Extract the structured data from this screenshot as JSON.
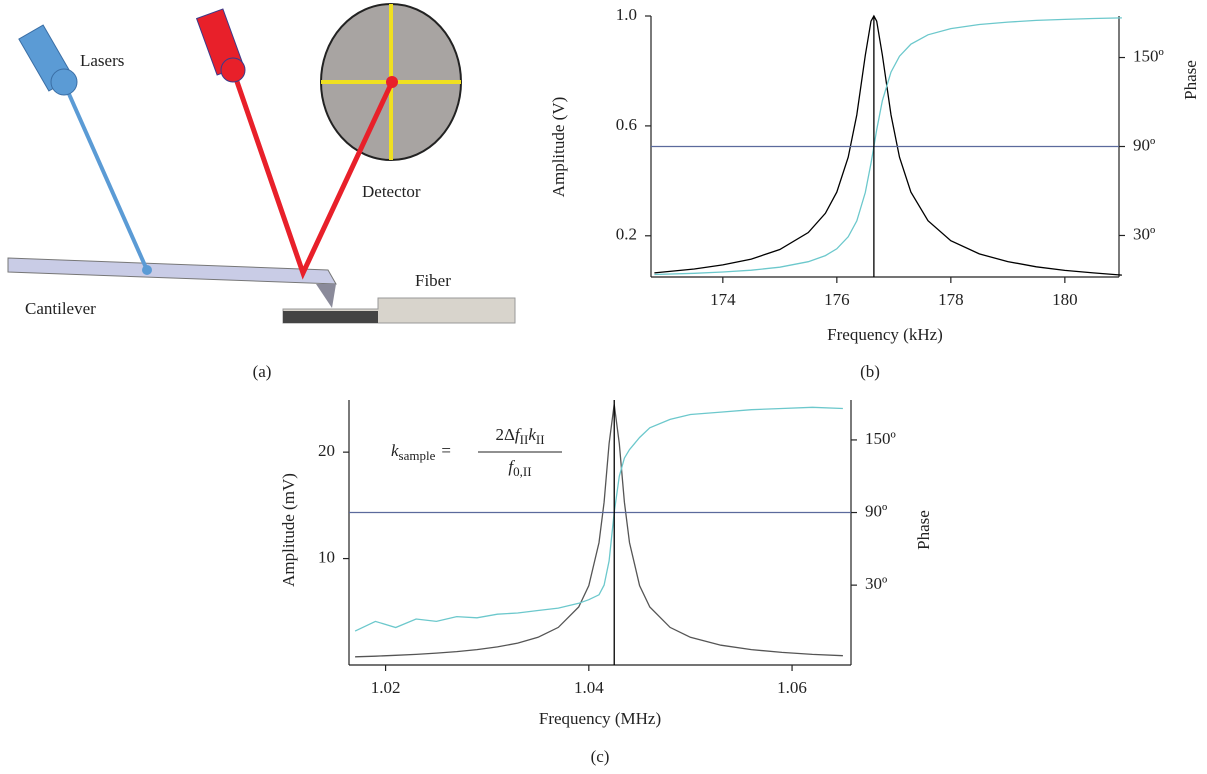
{
  "diagram": {
    "lasers": "Lasers",
    "detector": "Detector",
    "cantilever": "Cantilever",
    "fiber": "Fiber",
    "caption": "(a)"
  },
  "chart_data": [
    {
      "type": "line",
      "caption": "(b)",
      "xlabel": "Frequency (kHz)",
      "ylabel": "Amplitude (V)",
      "y2label": "Phase",
      "xlim": [
        172.74,
        180.95
      ],
      "xticks": [
        174,
        176,
        178,
        180
      ],
      "ylim": [
        0.05,
        1.0
      ],
      "yticks": [
        0.2,
        0.6,
        {
          "value": 1.0,
          "label": "1.0"
        }
      ],
      "y2lim": [
        2,
        178
      ],
      "y2ticks": [
        {
          "value": 30,
          "label": "30º"
        },
        {
          "value": 90,
          "label": "90º"
        },
        {
          "value": 150,
          "label": "150º"
        }
      ],
      "x": [
        172.8,
        173.5,
        174,
        174.5,
        175,
        175.5,
        175.8,
        176,
        176.2,
        176.35,
        176.5,
        176.6,
        176.65,
        176.7,
        176.8,
        176.95,
        177.1,
        177.3,
        177.6,
        178,
        178.5,
        179,
        179.5,
        180,
        180.5,
        181
      ],
      "series": [
        {
          "color": "#000000",
          "values": [
            0.065,
            0.079,
            0.094,
            0.115,
            0.15,
            0.212,
            0.282,
            0.359,
            0.486,
            0.64,
            0.857,
            0.981,
            1.0,
            0.981,
            0.857,
            0.64,
            0.486,
            0.359,
            0.255,
            0.182,
            0.134,
            0.106,
            0.087,
            0.074,
            0.065,
            0.057
          ]
        },
        {
          "color": "#6cc8cc",
          "axis": "y2",
          "values": [
            3.7,
            4.5,
            5.4,
            6.6,
            8.6,
            12.3,
            16.4,
            21.0,
            29.1,
            39.8,
            59.0,
            78.7,
            90,
            101.3,
            121.0,
            140.2,
            150.9,
            159.0,
            165.3,
            169.5,
            172.3,
            173.9,
            175.0,
            175.7,
            176.3,
            176.7
          ]
        }
      ],
      "reference_lines": [
        {
          "axis": "y2",
          "value": 90,
          "color": "#5b6a9c"
        },
        {
          "axis": "x",
          "value": 176.65,
          "color": "#000000"
        }
      ]
    },
    {
      "type": "line",
      "caption": "(c)",
      "xlabel": "Frequency (MHz)",
      "ylabel": "Amplitude (mV)",
      "y2label": "Phase",
      "annotation": {
        "k": "k",
        "k_sub": "sample",
        "equals": "=",
        "num_a": "2Δ",
        "num_f": "f",
        "num_f_sub": "II",
        "num_k": "k",
        "num_k_sub": "II",
        "den_f": "f",
        "den_f_sub": "0,II"
      },
      "xlim": [
        1.0164,
        1.0658
      ],
      "xticks": [
        1.02,
        1.04,
        1.06
      ],
      "ylim": [
        0,
        24.9
      ],
      "yticks": [
        10,
        20
      ],
      "y2lim": [
        -36,
        183
      ],
      "y2ticks": [
        {
          "value": 30,
          "label": "30º"
        },
        {
          "value": 90,
          "label": "90º"
        },
        {
          "value": 150,
          "label": "150º"
        }
      ],
      "x": [
        1.017,
        1.019,
        1.021,
        1.023,
        1.025,
        1.027,
        1.029,
        1.031,
        1.033,
        1.035,
        1.037,
        1.039,
        1.04,
        1.041,
        1.0415,
        1.042,
        1.0425,
        1.043,
        1.0435,
        1.044,
        1.045,
        1.046,
        1.048,
        1.05,
        1.053,
        1.056,
        1.059,
        1.062,
        1.065
      ],
      "series": [
        {
          "color": "#555555",
          "values": [
            0.77,
            0.83,
            0.91,
            1.0,
            1.12,
            1.26,
            1.45,
            1.7,
            2.06,
            2.6,
            3.53,
            5.45,
            7.46,
            11.5,
            15.3,
            20.8,
            24.5,
            20.8,
            15.3,
            11.5,
            7.46,
            5.45,
            3.53,
            2.6,
            1.86,
            1.45,
            1.18,
            1.0,
            0.87
          ]
        },
        {
          "color": "#6cc8cc",
          "axis": "y2",
          "values": [
            -8,
            0,
            -5,
            2,
            0,
            4,
            3,
            6,
            7,
            9,
            11,
            15,
            18,
            22,
            30,
            50,
            90,
            120,
            135,
            142,
            152,
            160,
            167,
            171,
            173,
            175,
            176,
            177,
            176
          ]
        }
      ],
      "reference_lines": [
        {
          "axis": "y2",
          "value": 90,
          "color": "#5b6a9c"
        },
        {
          "axis": "x",
          "value": 1.0425,
          "color": "#000000"
        }
      ]
    }
  ]
}
